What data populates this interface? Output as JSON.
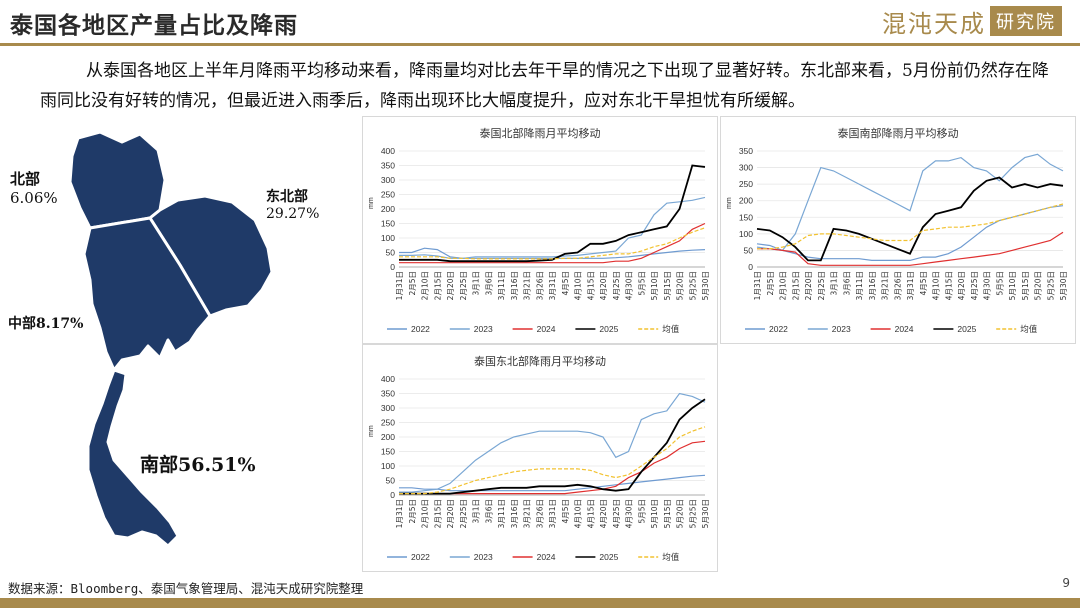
{
  "header": {
    "title": "泰国各地区产量占比及降雨",
    "brand_text": "混沌天成",
    "brand_box": "研究院"
  },
  "paragraph": "从泰国各地区上半年月降雨平均移动来看，降雨量均对比去年干旱的情况之下出现了显著好转。东北部来看，5月份前仍然存在降雨同比没有好转的情况，但最近进入雨季后，降雨出现环比大幅度提升，应对东北干旱担忧有所缓解。",
  "map": {
    "color": "#1f3a68",
    "regions": [
      {
        "name": "北部",
        "share": "6.06%"
      },
      {
        "name": "东北部",
        "share": "29.27%"
      },
      {
        "name": "中部8.17%"
      },
      {
        "name": "南部56.51%"
      }
    ]
  },
  "colors": {
    "2022": "#6f9bd1",
    "2023": "#7aa7d4",
    "2024": "#e03030",
    "2025": "#000000",
    "avg": "#f2c230",
    "accent": "#a88a4c"
  },
  "chart_data": [
    {
      "type": "line",
      "title": "泰国北部降雨月平均移动",
      "ylim": [
        0,
        400
      ],
      "yticks": [
        0,
        50,
        100,
        150,
        200,
        250,
        300,
        350,
        400
      ],
      "x": [
        "1月31日",
        "2月5日",
        "2月10日",
        "2月15日",
        "2月20日",
        "2月25日",
        "3月1日",
        "3月6日",
        "3月11日",
        "3月16日",
        "3月21日",
        "3月26日",
        "3月31日",
        "4月5日",
        "4月10日",
        "4月15日",
        "4月20日",
        "4月25日",
        "4月30日",
        "5月5日",
        "5月10日",
        "5月15日",
        "5月20日",
        "5月25日",
        "5月30日"
      ],
      "series": [
        {
          "name": "2022",
          "values": [
            50,
            50,
            65,
            60,
            35,
            30,
            30,
            30,
            30,
            30,
            30,
            30,
            30,
            30,
            30,
            30,
            30,
            32,
            35,
            40,
            45,
            50,
            55,
            58,
            60
          ]
        },
        {
          "name": "2023",
          "values": [
            40,
            40,
            42,
            38,
            30,
            30,
            35,
            35,
            35,
            35,
            35,
            35,
            35,
            38,
            40,
            45,
            50,
            55,
            100,
            110,
            180,
            220,
            225,
            230,
            240
          ]
        },
        {
          "name": "2024",
          "values": [
            15,
            15,
            15,
            15,
            15,
            15,
            15,
            15,
            15,
            15,
            15,
            15,
            15,
            15,
            15,
            15,
            15,
            20,
            20,
            30,
            50,
            70,
            90,
            130,
            150
          ]
        },
        {
          "name": "2025",
          "values": [
            25,
            25,
            25,
            25,
            20,
            20,
            20,
            20,
            20,
            20,
            20,
            22,
            25,
            45,
            50,
            80,
            80,
            90,
            110,
            120,
            130,
            140,
            200,
            350,
            345
          ]
        },
        {
          "name": "均值",
          "values": [
            35,
            35,
            35,
            35,
            30,
            30,
            28,
            28,
            28,
            28,
            28,
            28,
            28,
            30,
            30,
            35,
            40,
            45,
            45,
            55,
            70,
            80,
            100,
            120,
            135
          ]
        }
      ]
    },
    {
      "type": "line",
      "title": "泰国南部降雨月平均移动",
      "ylim": [
        0,
        350
      ],
      "yticks": [
        0,
        50,
        100,
        150,
        200,
        250,
        300,
        350
      ],
      "x": [
        "1月31日",
        "2月5日",
        "2月10日",
        "2月15日",
        "2月20日",
        "2月25日",
        "3月1日",
        "3月6日",
        "3月11日",
        "3月16日",
        "3月21日",
        "3月26日",
        "3月31日",
        "4月5日",
        "4月10日",
        "4月15日",
        "4月20日",
        "4月25日",
        "4月30日",
        "5月5日",
        "5月10日",
        "5月15日",
        "5月20日",
        "5月25日",
        "5月30日"
      ],
      "series": [
        {
          "name": "2022",
          "values": [
            70,
            65,
            50,
            40,
            30,
            25,
            25,
            25,
            25,
            20,
            20,
            20,
            20,
            30,
            30,
            40,
            60,
            90,
            120,
            140,
            150,
            160,
            170,
            180,
            185
          ]
        },
        {
          "name": "2023",
          "values": [
            60,
            55,
            50,
            100,
            200,
            300,
            290,
            270,
            250,
            230,
            210,
            190,
            170,
            290,
            320,
            320,
            330,
            300,
            290,
            260,
            300,
            330,
            340,
            310,
            290
          ]
        },
        {
          "name": "2024",
          "values": [
            55,
            55,
            50,
            45,
            10,
            5,
            5,
            5,
            5,
            5,
            5,
            5,
            5,
            10,
            15,
            20,
            25,
            30,
            35,
            40,
            50,
            60,
            70,
            80,
            105
          ]
        },
        {
          "name": "2025",
          "values": [
            115,
            110,
            90,
            60,
            20,
            20,
            115,
            110,
            100,
            85,
            70,
            55,
            40,
            120,
            160,
            170,
            180,
            230,
            260,
            270,
            240,
            250,
            240,
            250,
            245
          ]
        },
        {
          "name": "均值",
          "values": [
            55,
            55,
            60,
            70,
            95,
            100,
            100,
            95,
            90,
            85,
            80,
            80,
            80,
            110,
            115,
            120,
            120,
            125,
            130,
            140,
            150,
            160,
            170,
            180,
            190
          ]
        }
      ]
    },
    {
      "type": "line",
      "title": "泰国东北部降雨月平均移动",
      "ylim": [
        0,
        400
      ],
      "yticks": [
        0,
        50,
        100,
        150,
        200,
        250,
        300,
        350,
        400
      ],
      "x": [
        "1月31日",
        "2月5日",
        "2月10日",
        "2月15日",
        "2月20日",
        "2月25日",
        "3月1日",
        "3月6日",
        "3月11日",
        "3月16日",
        "3月21日",
        "3月26日",
        "3月31日",
        "4月5日",
        "4月10日",
        "4月15日",
        "4月20日",
        "4月25日",
        "4月30日",
        "5月5日",
        "5月10日",
        "5月15日",
        "5月20日",
        "5月25日",
        "5月30日"
      ],
      "series": [
        {
          "name": "2022",
          "values": [
            25,
            25,
            20,
            20,
            15,
            15,
            15,
            15,
            15,
            15,
            15,
            15,
            15,
            15,
            20,
            25,
            30,
            35,
            40,
            45,
            50,
            55,
            60,
            65,
            68
          ]
        },
        {
          "name": "2023",
          "values": [
            10,
            10,
            15,
            20,
            40,
            80,
            120,
            150,
            180,
            200,
            210,
            220,
            220,
            220,
            220,
            215,
            200,
            130,
            150,
            260,
            280,
            290,
            350,
            340,
            320
          ]
        },
        {
          "name": "2024",
          "values": [
            5,
            5,
            5,
            5,
            5,
            5,
            5,
            5,
            5,
            5,
            5,
            5,
            5,
            5,
            10,
            15,
            20,
            30,
            60,
            80,
            110,
            130,
            160,
            180,
            185
          ]
        },
        {
          "name": "2025",
          "values": [
            5,
            5,
            5,
            5,
            5,
            10,
            15,
            20,
            25,
            25,
            25,
            30,
            30,
            30,
            35,
            30,
            20,
            15,
            20,
            80,
            130,
            180,
            260,
            300,
            330
          ]
        },
        {
          "name": "均值",
          "values": [
            5,
            5,
            5,
            10,
            20,
            35,
            50,
            60,
            70,
            80,
            85,
            90,
            90,
            90,
            90,
            85,
            70,
            60,
            70,
            100,
            130,
            160,
            200,
            220,
            235
          ]
        }
      ]
    }
  ],
  "footer": {
    "source": "数据来源：Bloomberg、泰国气象管理局、混沌天成研究院整理",
    "page": "9"
  }
}
